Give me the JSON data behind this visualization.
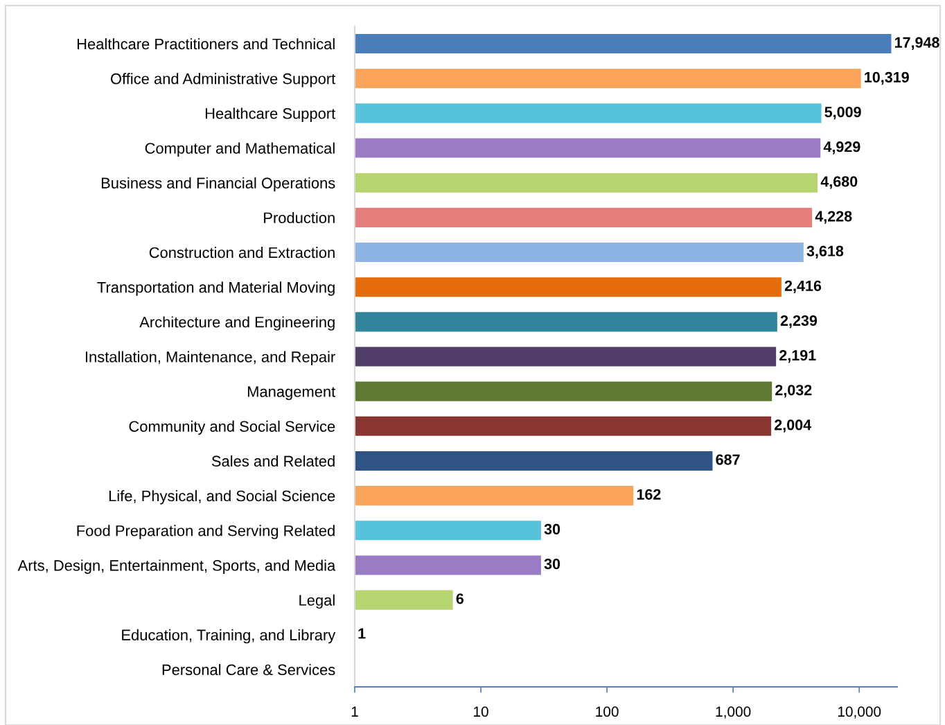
{
  "chart_data": {
    "type": "bar",
    "orientation": "horizontal",
    "categories": [
      "Healthcare Practitioners and Technical",
      "Office and Administrative Support",
      "Healthcare Support",
      "Computer and Mathematical",
      "Business and Financial Operations",
      "Production",
      "Construction and Extraction",
      "Transportation and Material Moving",
      "Architecture and Engineering",
      "Installation, Maintenance, and Repair",
      "Management",
      "Community and Social Service",
      "Sales and Related",
      "Life, Physical, and Social Science",
      "Food Preparation and Serving Related",
      "Arts, Design, Entertainment, Sports, and Media",
      "Legal",
      "Education, Training, and Library",
      "Personal Care & Services"
    ],
    "values": [
      17948,
      10319,
      5009,
      4929,
      4680,
      4228,
      3618,
      2416,
      2239,
      2191,
      2032,
      2004,
      687,
      162,
      30,
      30,
      6,
      1,
      null
    ],
    "value_labels": [
      "17,948",
      "10,319",
      "5,009",
      "4,929",
      "4,680",
      "4,228",
      "3,618",
      "2,416",
      "2,239",
      "2,191",
      "2,032",
      "2,004",
      "687",
      "162",
      "30",
      "30",
      "6",
      "1",
      null
    ],
    "colors": [
      "#4A7EBB",
      "#F9A35B",
      "#57C3DB",
      "#9A7CC4",
      "#B6D46F",
      "#E57F7C",
      "#8DB4E2",
      "#E46C0A",
      "#31849B",
      "#503D68",
      "#5E7A32",
      "#8B3533",
      "#2E5384",
      "#F9A35B",
      "#57C3DB",
      "#9A7CC4",
      "#B6D46F",
      null,
      null
    ],
    "log": "x",
    "xlim": [
      1,
      20000
    ],
    "xticks": [
      1,
      10,
      100,
      {
        "value": 1000,
        "label": "1,000"
      },
      {
        "value": 10000,
        "label": "10,000"
      }
    ],
    "grid": false
  }
}
